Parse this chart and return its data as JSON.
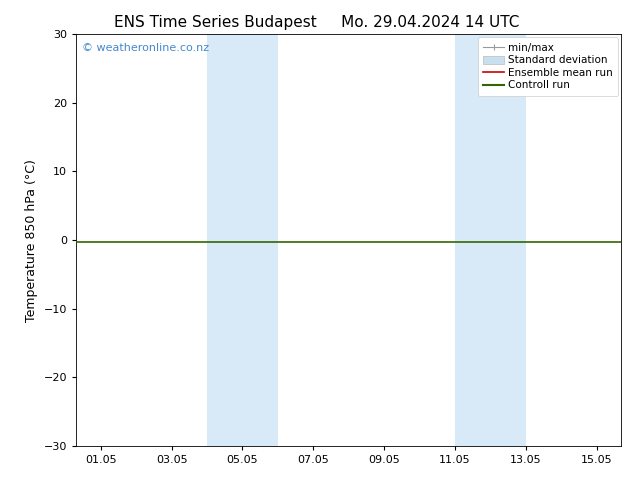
{
  "title_left": "ENS Time Series Budapest",
  "title_right": "Mo. 29.04.2024 14 UTC",
  "ylabel": "Temperature 850 hPa (°C)",
  "ylim": [
    -30,
    30
  ],
  "yticks": [
    -30,
    -20,
    -10,
    0,
    10,
    20,
    30
  ],
  "xtick_labels": [
    "01.05",
    "03.05",
    "05.05",
    "07.05",
    "09.05",
    "11.05",
    "13.05",
    "15.05"
  ],
  "xtick_positions": [
    1,
    3,
    5,
    7,
    9,
    11,
    13,
    15
  ],
  "xlim": [
    0.3,
    15.7
  ],
  "shaded_regions": [
    {
      "x_start": 4.0,
      "x_end": 6.0
    },
    {
      "x_start": 11.0,
      "x_end": 13.0
    }
  ],
  "shaded_color": "#d8eaf7",
  "horizontal_line_y": -0.3,
  "horizontal_line_color": "#336600",
  "watermark_text": "© weatheronline.co.nz",
  "watermark_color": "#4488cc",
  "bg_color": "#ffffff",
  "plot_bg_color": "#ffffff",
  "border_color": "#000000",
  "legend_items": [
    {
      "label": "min/max",
      "type": "minmax",
      "color": "#999999",
      "lw": 1
    },
    {
      "label": "Standard deviation",
      "type": "patch",
      "color": "#c8dff0",
      "edgecolor": "#bbbbbb"
    },
    {
      "label": "Ensemble mean run",
      "type": "line",
      "color": "#cc0000",
      "lw": 1.2
    },
    {
      "label": "Controll run",
      "type": "line",
      "color": "#336600",
      "lw": 1.5
    }
  ],
  "title_fontsize": 11,
  "axis_label_fontsize": 9,
  "tick_fontsize": 8,
  "watermark_fontsize": 8,
  "legend_fontsize": 7.5
}
